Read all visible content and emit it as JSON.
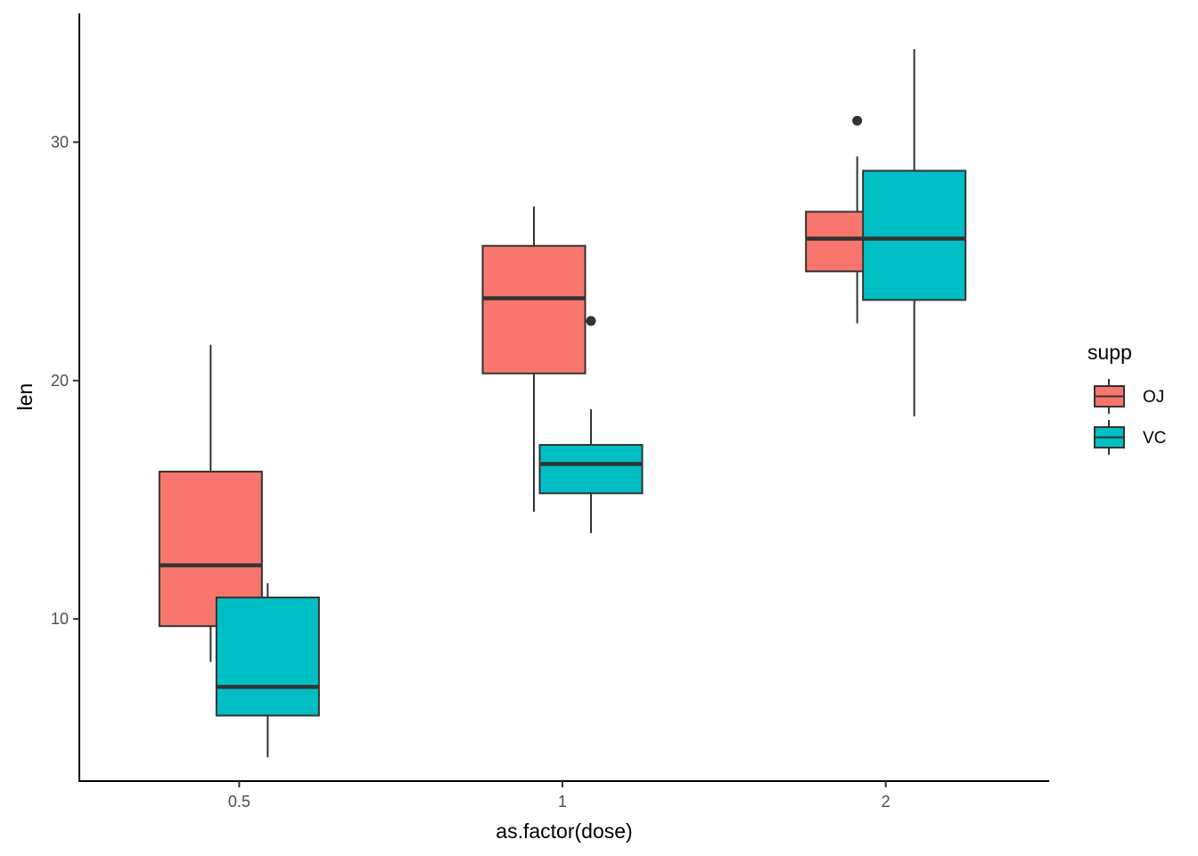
{
  "chart_data": {
    "type": "boxplot",
    "xlabel": "as.factor(dose)",
    "ylabel": "len",
    "categories": [
      "0.5",
      "1",
      "2"
    ],
    "y_ticks": [
      10,
      20,
      30
    ],
    "ylim": [
      3.2,
      35.4
    ],
    "grid": false,
    "legend": {
      "title": "supp",
      "placement": "right"
    },
    "series": [
      {
        "name": "OJ",
        "color": "#F8766D",
        "boxes": [
          {
            "category": "0.5",
            "whisker_low": 8.2,
            "q1": 9.7,
            "median": 12.25,
            "q3": 16.18,
            "whisker_high": 21.5,
            "outliers": []
          },
          {
            "category": "1",
            "whisker_low": 14.5,
            "q1": 20.3,
            "median": 23.45,
            "q3": 25.65,
            "whisker_high": 27.3,
            "outliers": []
          },
          {
            "category": "2",
            "whisker_low": 22.4,
            "q1": 24.58,
            "median": 25.95,
            "q3": 27.08,
            "whisker_high": 29.4,
            "outliers": [
              30.9
            ]
          }
        ]
      },
      {
        "name": "VC",
        "color": "#00BFC4",
        "boxes": [
          {
            "category": "0.5",
            "whisker_low": 4.2,
            "q1": 5.95,
            "median": 7.15,
            "q3": 10.9,
            "whisker_high": 11.5,
            "outliers": []
          },
          {
            "category": "1",
            "whisker_low": 13.6,
            "q1": 15.27,
            "median": 16.5,
            "q3": 17.3,
            "whisker_high": 18.8,
            "outliers": [
              22.5
            ]
          },
          {
            "category": "2",
            "whisker_low": 18.5,
            "q1": 23.38,
            "median": 25.95,
            "q3": 28.8,
            "whisker_high": 33.9,
            "outliers": []
          }
        ]
      }
    ]
  }
}
